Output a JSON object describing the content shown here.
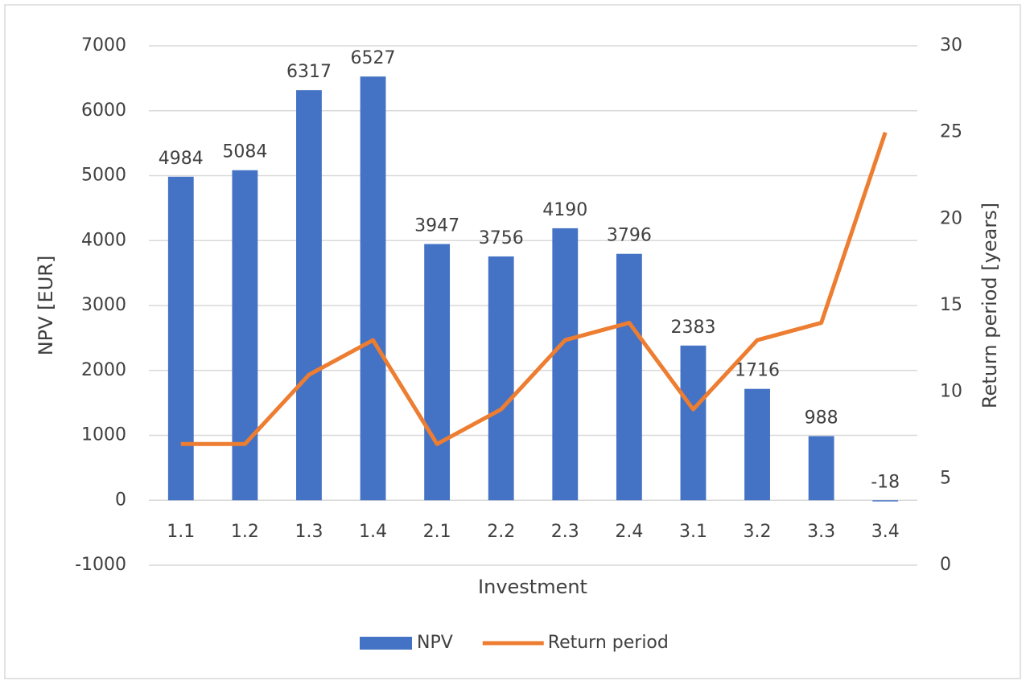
{
  "chart_data": {
    "type": "combo",
    "x_label": "Investment",
    "y_label": "NPV [EUR]",
    "y2_label": "Return period [years]",
    "categories": [
      "1.1",
      "1.2",
      "1.3",
      "1.4",
      "2.1",
      "2.2",
      "2.3",
      "2.4",
      "3.1",
      "3.2",
      "3.3",
      "3.4"
    ],
    "series": [
      {
        "name": "NPV",
        "type": "bar",
        "color": "#4472c4",
        "values": [
          4984,
          5084,
          6317,
          6527,
          3947,
          3756,
          4190,
          3796,
          2383,
          1716,
          988,
          -18
        ]
      },
      {
        "name": "Return period",
        "type": "line",
        "axis": "y2",
        "color": "#ed7d31",
        "values": [
          7,
          7,
          11,
          13,
          7,
          9,
          13,
          14,
          9,
          13,
          14,
          25
        ]
      }
    ],
    "ylim": [
      -1000,
      7000
    ],
    "yticks": [
      -1000,
      0,
      1000,
      2000,
      3000,
      4000,
      5000,
      6000,
      7000
    ],
    "y2lim": [
      0,
      30
    ],
    "y2ticks": [
      0,
      5,
      10,
      15,
      20,
      25,
      30
    ],
    "grid": true,
    "legend": "bottom"
  }
}
